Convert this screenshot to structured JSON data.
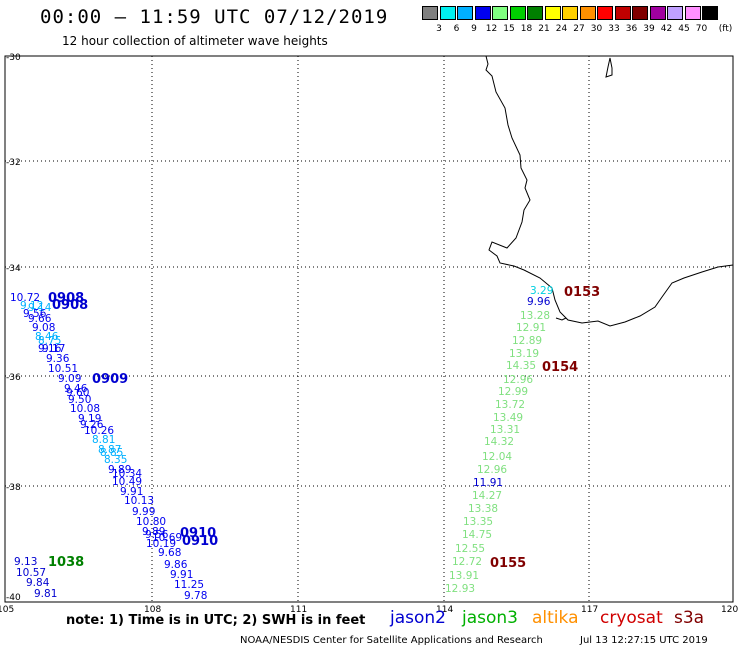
{
  "header": {
    "title": "00:00 – 11:59 UTC 07/12/2019",
    "subtitle": "12 hour collection of altimeter wave heights"
  },
  "legend": {
    "unit": "(ft)",
    "swatches": [
      {
        "color": "#808080",
        "label": "3"
      },
      {
        "color": "#00f0f0",
        "label": "6"
      },
      {
        "color": "#00b0ff",
        "label": "9"
      },
      {
        "color": "#0000f0",
        "label": "12"
      },
      {
        "color": "#80ff80",
        "label": "15"
      },
      {
        "color": "#00d000",
        "label": "18"
      },
      {
        "color": "#008000",
        "label": "21"
      },
      {
        "color": "#ffff00",
        "label": "24"
      },
      {
        "color": "#ffd000",
        "label": "27"
      },
      {
        "color": "#ff9000",
        "label": "30"
      },
      {
        "color": "#ff0000",
        "label": "33"
      },
      {
        "color": "#c00000",
        "label": "36"
      },
      {
        "color": "#800000",
        "label": "39"
      },
      {
        "color": "#a000a0",
        "label": "42"
      },
      {
        "color": "#c0a0ff",
        "label": "45"
      },
      {
        "color": "#ff90ff",
        "label": "70"
      },
      {
        "color": "#000000",
        "label": ""
      }
    ]
  },
  "axes": {
    "lat_ticks": [
      "-30",
      "-32",
      "-34",
      "-36",
      "-38",
      "-40"
    ],
    "lon_ticks": [
      "105",
      "108",
      "111",
      "114",
      "117",
      "120"
    ]
  },
  "track_west": {
    "color_dark": "#0000f0",
    "color_light": "#00b0ff",
    "color_cyan": "#00f0f0",
    "points": [
      {
        "v": "10.72",
        "c": "d"
      },
      {
        "v": "9.12",
        "c": "l"
      },
      {
        "v": "9.14",
        "c": "l"
      },
      {
        "v": "9.56",
        "c": "d"
      },
      {
        "v": "9.66",
        "c": "d"
      },
      {
        "v": "9.08",
        "c": "d"
      },
      {
        "v": "8.46",
        "c": "l"
      },
      {
        "v": "8.75",
        "c": "l"
      },
      {
        "v": "9.17",
        "c": "d"
      },
      {
        "v": "9.16",
        "c": "d"
      },
      {
        "v": "9.36",
        "c": "d"
      },
      {
        "v": "10.51",
        "c": "d"
      },
      {
        "v": "9.09",
        "c": "d"
      },
      {
        "v": "9.46",
        "c": "d"
      },
      {
        "v": "9.60",
        "c": "d"
      },
      {
        "v": "9.50",
        "c": "d"
      },
      {
        "v": "10.08",
        "c": "d"
      },
      {
        "v": "9.19",
        "c": "d"
      },
      {
        "v": "9.26",
        "c": "d"
      },
      {
        "v": "10.26",
        "c": "d"
      },
      {
        "v": "8.81",
        "c": "l"
      },
      {
        "v": "8.87",
        "c": "l"
      },
      {
        "v": "8.85",
        "c": "l"
      },
      {
        "v": "8.35",
        "c": "l"
      },
      {
        "v": "9.89",
        "c": "d"
      },
      {
        "v": "10.34",
        "c": "d"
      },
      {
        "v": "10.49",
        "c": "d"
      },
      {
        "v": "9.91",
        "c": "d"
      },
      {
        "v": "10.13",
        "c": "d"
      },
      {
        "v": "9.99",
        "c": "d"
      },
      {
        "v": "10.80",
        "c": "d"
      },
      {
        "v": "9.89",
        "c": "d"
      },
      {
        "v": "9.56",
        "c": "d"
      },
      {
        "v": "10.69",
        "c": "d"
      },
      {
        "v": "10.19",
        "c": "d"
      },
      {
        "v": "9.68",
        "c": "d"
      },
      {
        "v": "9.86",
        "c": "d"
      },
      {
        "v": "9.91",
        "c": "d"
      },
      {
        "v": "11.25",
        "c": "d"
      },
      {
        "v": "9.78",
        "c": "d"
      }
    ],
    "times": [
      "0908",
      "0908",
      "0909",
      "0910",
      "0910"
    ]
  },
  "track_sw": {
    "points": [
      "9.13",
      "10.57",
      "9.84",
      "9.81"
    ],
    "time": "1038"
  },
  "track_east": {
    "points": [
      "3.29",
      "9.96",
      "13.28",
      "12.91",
      "12.89",
      "13.19",
      "14.35",
      "12.96",
      "12.99",
      "13.72",
      "13.49",
      "13.31",
      "14.32",
      "12.04",
      "12.96",
      "11.91",
      "14.27",
      "13.38",
      "13.35",
      "14.75",
      "12.55",
      "12.72",
      "13.91",
      "12.93"
    ],
    "times": [
      "0153",
      "0154",
      "0155"
    ]
  },
  "footer": {
    "note": "note: 1) Time is in UTC; 2) SWH is in feet",
    "satellites": [
      {
        "name": "jason2",
        "color": "#0000d0"
      },
      {
        "name": "jason3",
        "color": "#00b000"
      },
      {
        "name": "altika",
        "color": "#ff9000"
      },
      {
        "name": "cryosat",
        "color": "#d00000"
      },
      {
        "name": "s3a",
        "color": "#800000"
      }
    ],
    "credit": "NOAA/NESDIS Center for Satellite Applications and Research",
    "stamp": "Jul 13 12:27:15 UTC 2019"
  }
}
